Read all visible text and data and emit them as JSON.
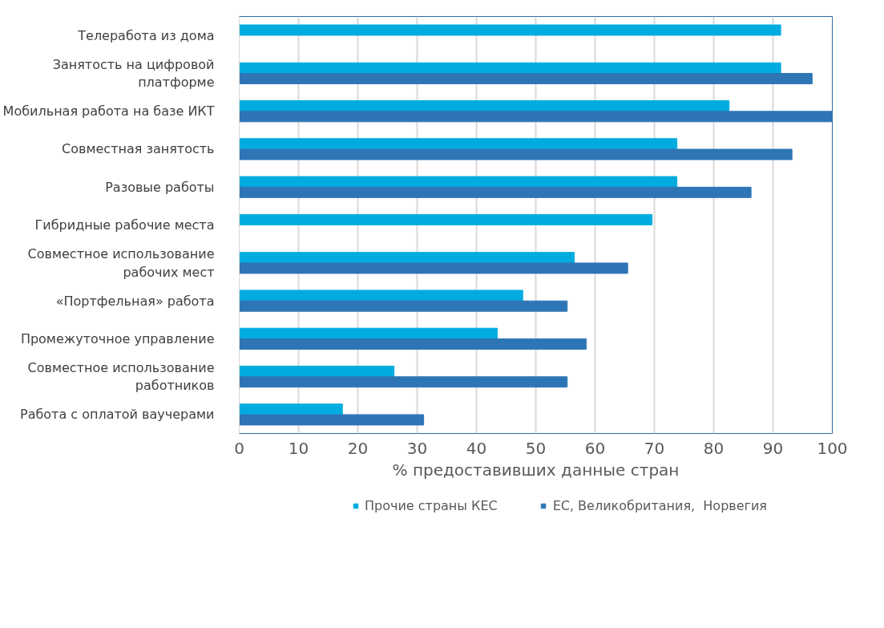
{
  "chart_data": {
    "type": "bar",
    "orientation": "horizontal",
    "xlabel": "% предоставивших данные стран",
    "categories": [
      "Телеработа из дома",
      "Занятость на цифровой платформе",
      "Мобильная работа на базе ИКТ",
      "Совместная занятость",
      "Разовые работы",
      "Гибридные рабочие места",
      "Совместное использование рабочих мест",
      "«Портфельная» работа",
      "Промежуточное управление",
      "Совместное использование работников",
      "Работа с оплатой ваучерами"
    ],
    "series": [
      {
        "name": "Прочие страны КЕС",
        "color": "#00acdf",
        "values": [
          91.3,
          91.3,
          82.6,
          73.8,
          73.8,
          69.6,
          56.5,
          47.8,
          43.5,
          26.1,
          17.4
        ]
      },
      {
        "name": "ЕС, Великобритания,  Норвегия",
        "color": "#2e75b6",
        "values": [
          null,
          96.6,
          100,
          93.2,
          86.3,
          null,
          65.5,
          55.3,
          58.5,
          55.3,
          31.1
        ]
      }
    ],
    "xlim": [
      0,
      100
    ],
    "xticks": [
      0,
      10,
      20,
      30,
      40,
      50,
      60,
      70,
      80,
      90,
      100
    ],
    "grid": "x",
    "legend": "bottom"
  }
}
